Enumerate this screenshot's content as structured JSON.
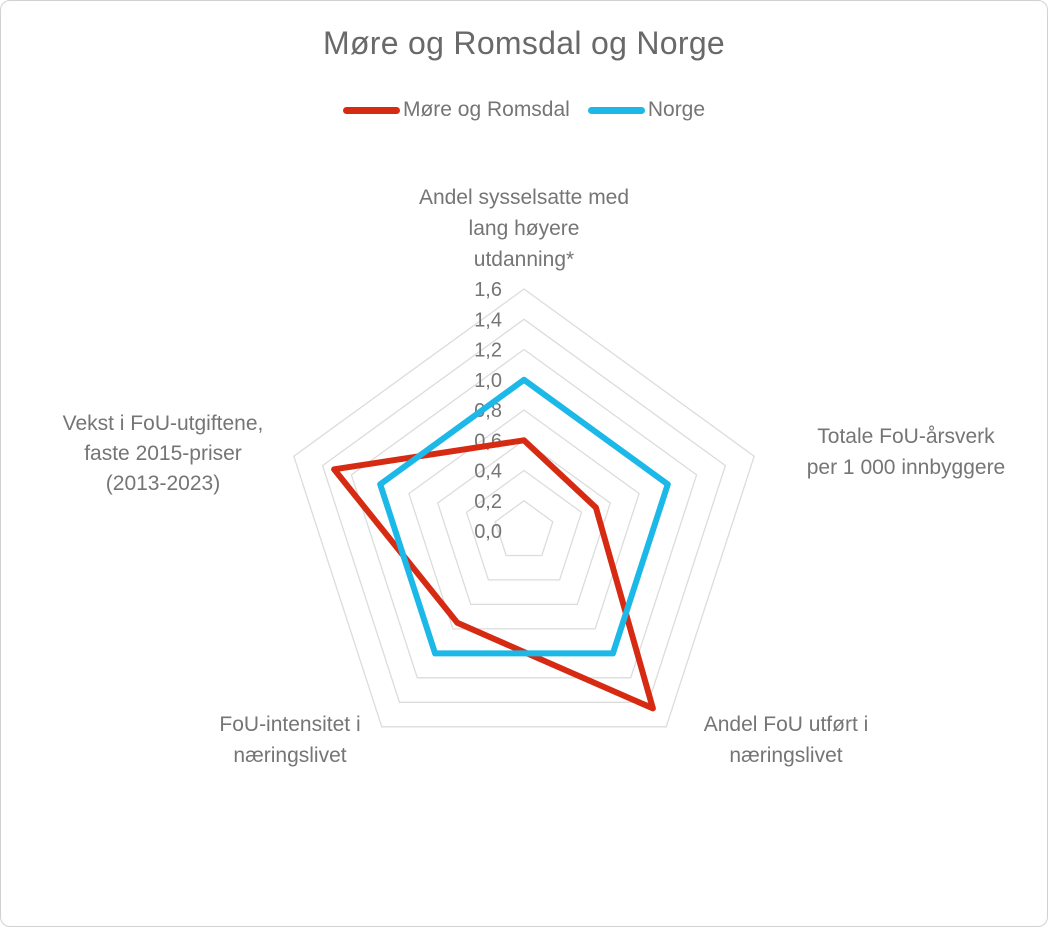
{
  "title": "Møre og Romsdal og Norge",
  "legend": {
    "items": [
      "Møre og Romsdal",
      "Norge"
    ]
  },
  "chart_data": {
    "type": "radar",
    "title": "Møre og Romsdal og Norge",
    "axes": [
      {
        "label": "Andel sysselsatte med lang høyere utdanning*",
        "label_lines": [
          "Andel sysselsatte med",
          "lang høyere",
          "utdanning*"
        ]
      },
      {
        "label": "Totale FoU-årsverk per 1 000 innbyggere",
        "label_lines": [
          "Totale FoU-årsverk",
          "per 1 000 innbyggere"
        ]
      },
      {
        "label": "Andel FoU utført i næringslivet",
        "label_lines": [
          "Andel FoU utført i",
          "næringslivet"
        ]
      },
      {
        "label": "FoU-intensitet i næringslivet",
        "label_lines": [
          "FoU-intensitet i",
          "næringslivet"
        ]
      },
      {
        "label": "Vekst i FoU-utgiftene, faste 2015-priser (2013-2023)",
        "label_lines": [
          "Vekst i FoU-utgiftene,",
          "faste 2015-priser",
          "(2013-2023)"
        ]
      }
    ],
    "series": [
      {
        "name": "Møre og Romsdal",
        "color": "#d62b12",
        "values": [
          0.6,
          0.5,
          1.45,
          0.75,
          1.32
        ]
      },
      {
        "name": "Norge",
        "color": "#1cb8e8",
        "values": [
          1.0,
          1.0,
          1.0,
          1.0,
          1.0
        ]
      }
    ],
    "radial_ticks": [
      "0,0",
      "0,2",
      "0,4",
      "0,6",
      "0,8",
      "1,0",
      "1,2",
      "1,4",
      "1,6"
    ],
    "tick_values": [
      0.0,
      0.2,
      0.4,
      0.6,
      0.8,
      1.0,
      1.2,
      1.4,
      1.6
    ],
    "grid_levels": [
      0.2,
      0.4,
      0.6,
      0.8,
      1.0,
      1.2,
      1.4,
      1.6
    ],
    "r_max": 1.6,
    "grid_on": true,
    "grid_color": "#dcdcdc",
    "text_color": "#757575",
    "legend_position": "top"
  }
}
